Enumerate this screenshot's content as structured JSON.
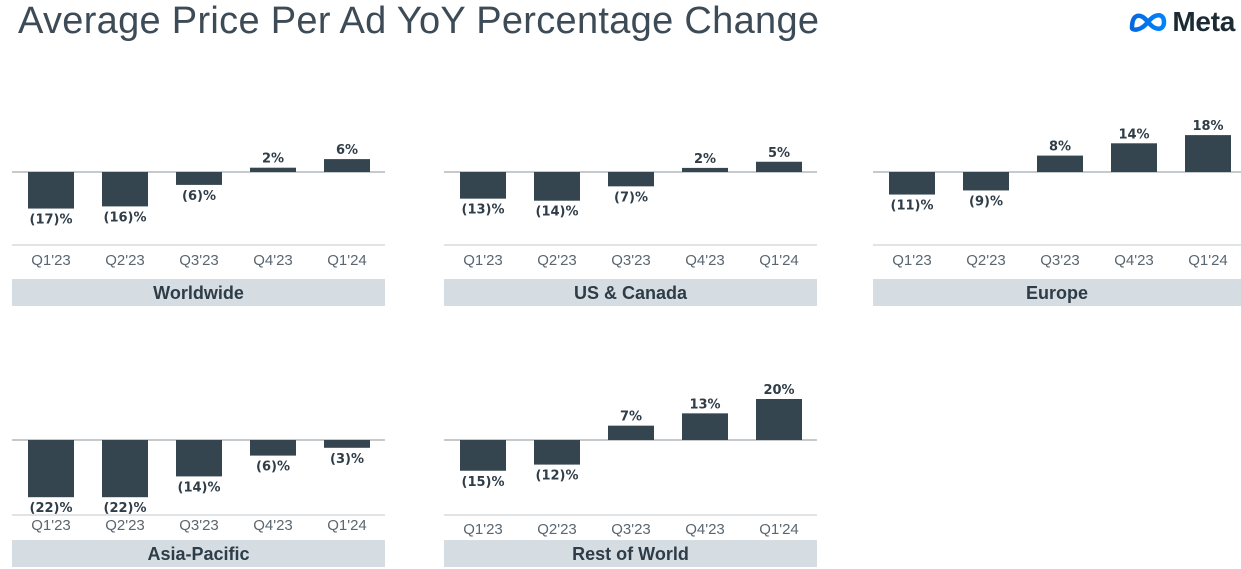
{
  "header": {
    "title": "Average Price Per Ad YoY Percentage Change",
    "brand": "Meta"
  },
  "colors": {
    "bar": "#34454f",
    "label_bg": "#d5dde3",
    "logo_left": "#0668e1",
    "logo_right": "#0082fb"
  },
  "chart_data": [
    {
      "type": "bar",
      "title": "Worldwide",
      "categories": [
        "Q1'23",
        "Q2'23",
        "Q3'23",
        "Q4'23",
        "Q1'24"
      ],
      "values": [
        -17,
        -16,
        -6,
        2,
        6
      ],
      "labels": [
        "(17)%",
        "(16)%",
        "(6)%",
        "2%",
        "6%"
      ],
      "ylabel": "",
      "xlabel": ""
    },
    {
      "type": "bar",
      "title": "US & Canada",
      "categories": [
        "Q1'23",
        "Q2'23",
        "Q3'23",
        "Q4'23",
        "Q1'24"
      ],
      "values": [
        -13,
        -14,
        -7,
        2,
        5
      ],
      "labels": [
        "(13)%",
        "(14)%",
        "(7)%",
        "2%",
        "5%"
      ],
      "ylabel": "",
      "xlabel": ""
    },
    {
      "type": "bar",
      "title": "Europe",
      "categories": [
        "Q1'23",
        "Q2'23",
        "Q3'23",
        "Q4'23",
        "Q1'24"
      ],
      "values": [
        -11,
        -9,
        8,
        14,
        18
      ],
      "labels": [
        "(11)%",
        "(9)%",
        "8%",
        "14%",
        "18%"
      ],
      "ylabel": "",
      "xlabel": ""
    },
    {
      "type": "bar",
      "title": "Asia-Pacific",
      "categories": [
        "Q1'23",
        "Q2'23",
        "Q3'23",
        "Q4'23",
        "Q1'24"
      ],
      "values": [
        -22,
        -22,
        -14,
        -6,
        -3
      ],
      "labels": [
        "(22)%",
        "(22)%",
        "(14)%",
        "(6)%",
        "(3)%"
      ],
      "ylabel": "",
      "xlabel": ""
    },
    {
      "type": "bar",
      "title": "Rest of World",
      "categories": [
        "Q1'23",
        "Q2'23",
        "Q3'23",
        "Q4'23",
        "Q1'24"
      ],
      "values": [
        -15,
        -12,
        7,
        13,
        20
      ],
      "labels": [
        "(15)%",
        "(12)%",
        "7%",
        "13%",
        "20%"
      ],
      "ylabel": "",
      "xlabel": ""
    }
  ]
}
